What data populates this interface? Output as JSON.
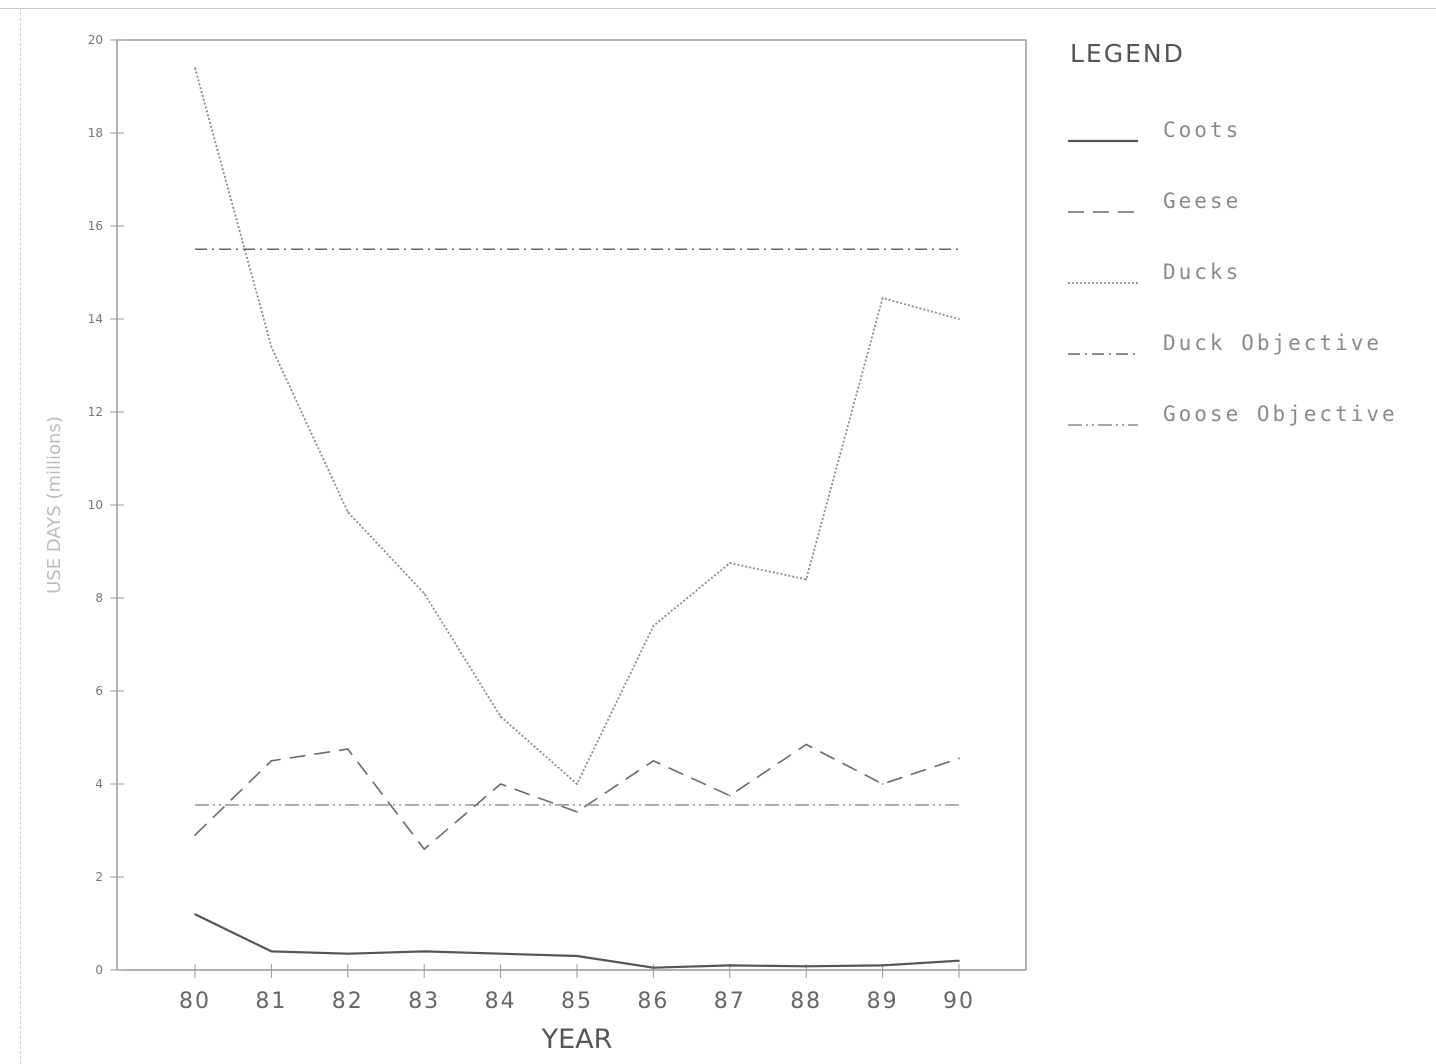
{
  "chart_data": {
    "type": "line",
    "xlabel": "YEAR",
    "ylabel": "USE DAYS (millions)",
    "x": [
      "80",
      "81",
      "82",
      "83",
      "84",
      "85",
      "86",
      "87",
      "88",
      "89",
      "90"
    ],
    "ylim": [
      0,
      20
    ],
    "yticks": [
      0,
      2,
      4,
      6,
      8,
      10,
      12,
      14,
      16,
      18,
      20
    ],
    "grid": false,
    "legend_title": "LEGEND",
    "legend_placement": "right",
    "series": [
      {
        "name": "Coots",
        "style": "solid",
        "color": "#555555",
        "values": [
          1.2,
          0.4,
          0.35,
          0.4,
          0.35,
          0.3,
          0.05,
          0.1,
          0.08,
          0.1,
          0.2
        ]
      },
      {
        "name": "Geese",
        "style": "dashed",
        "color": "#6a6a6a",
        "values": [
          2.9,
          4.5,
          4.75,
          2.6,
          4.0,
          3.4,
          4.5,
          3.75,
          4.85,
          4.0,
          4.55
        ]
      },
      {
        "name": "Ducks",
        "style": "dotted",
        "color": "#8a8a8a",
        "values": [
          19.4,
          13.4,
          9.85,
          8.1,
          5.45,
          4.0,
          7.4,
          8.75,
          8.4,
          14.45,
          14.0
        ]
      },
      {
        "name": "Duck Objective",
        "style": "dashdot",
        "color": "#666666",
        "values": [
          15.5,
          15.5,
          15.5,
          15.5,
          15.5,
          15.5,
          15.5,
          15.5,
          15.5,
          15.5,
          15.5
        ]
      },
      {
        "name": "Goose Objective",
        "style": "dashdotdot",
        "color": "#8a8a8a",
        "values": [
          3.55,
          3.55,
          3.55,
          3.55,
          3.55,
          3.55,
          3.55,
          3.55,
          3.55,
          3.55,
          3.55
        ]
      }
    ]
  }
}
